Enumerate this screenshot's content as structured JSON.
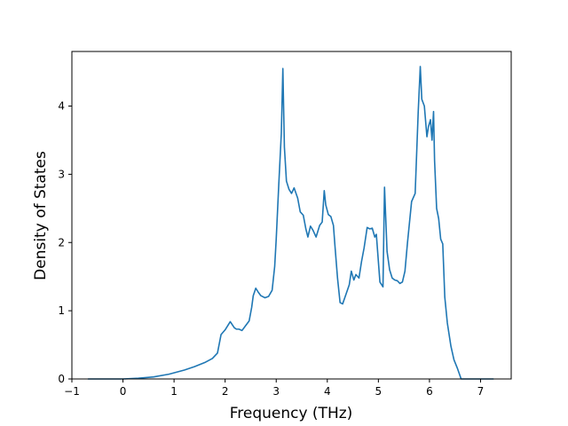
{
  "chart_data": {
    "type": "line",
    "title": "",
    "xlabel": "Frequency (THz)",
    "ylabel": "Density of States",
    "xlim": [
      -1.0,
      7.6
    ],
    "ylim": [
      0,
      4.8
    ],
    "xticks": [
      -1,
      0,
      1,
      2,
      3,
      4,
      5,
      6,
      7
    ],
    "yticks": [
      0,
      1,
      2,
      3,
      4
    ],
    "xtick_labels": [
      "−1",
      "0",
      "1",
      "2",
      "3",
      "4",
      "5",
      "6",
      "7"
    ],
    "ytick_labels": [
      "0",
      "1",
      "2",
      "3",
      "4"
    ],
    "grid": false,
    "legend": "none",
    "colors": {
      "line": "#1f77b4",
      "axes": "#000000",
      "background": "#ffffff"
    },
    "series": [
      {
        "x": [
          -0.68,
          -0.2,
          0.0,
          0.3,
          0.6,
          0.9,
          1.2,
          1.4,
          1.6,
          1.75,
          1.85,
          1.92,
          2.0,
          2.1,
          2.18,
          2.22,
          2.27,
          2.33,
          2.4,
          2.47,
          2.52,
          2.55,
          2.6,
          2.65,
          2.7,
          2.78,
          2.85,
          2.92,
          2.97,
          3.0,
          3.05,
          3.1,
          3.13,
          3.16,
          3.2,
          3.25,
          3.3,
          3.35,
          3.42,
          3.47,
          3.53,
          3.58,
          3.62,
          3.67,
          3.72,
          3.78,
          3.85,
          3.9,
          3.94,
          3.97,
          4.02,
          4.07,
          4.12,
          4.15,
          4.2,
          4.25,
          4.3,
          4.37,
          4.43,
          4.47,
          4.52,
          4.56,
          4.62,
          4.67,
          4.72,
          4.78,
          4.83,
          4.88,
          4.93,
          4.96,
          5.03,
          5.09,
          5.12,
          5.17,
          5.22,
          5.27,
          5.32,
          5.37,
          5.42,
          5.47,
          5.52,
          5.57,
          5.65,
          5.72,
          5.78,
          5.82,
          5.85,
          5.9,
          5.95,
          5.98,
          6.02,
          6.05,
          6.08,
          6.1,
          6.14,
          6.18,
          6.22,
          6.26,
          6.3,
          6.35,
          6.42,
          6.48,
          6.55,
          6.62,
          6.75,
          6.9,
          7.1,
          7.25
        ],
        "y": [
          0.0,
          0.0,
          0.0,
          0.01,
          0.03,
          0.07,
          0.13,
          0.18,
          0.24,
          0.3,
          0.38,
          0.65,
          0.72,
          0.84,
          0.75,
          0.73,
          0.73,
          0.71,
          0.78,
          0.85,
          1.05,
          1.22,
          1.33,
          1.27,
          1.22,
          1.19,
          1.21,
          1.3,
          1.65,
          2.05,
          2.85,
          3.6,
          4.55,
          3.4,
          2.9,
          2.78,
          2.72,
          2.8,
          2.65,
          2.45,
          2.4,
          2.2,
          2.08,
          2.24,
          2.18,
          2.08,
          2.25,
          2.3,
          2.76,
          2.55,
          2.41,
          2.38,
          2.25,
          1.95,
          1.48,
          1.12,
          1.1,
          1.25,
          1.38,
          1.58,
          1.45,
          1.53,
          1.48,
          1.72,
          1.92,
          2.22,
          2.2,
          2.21,
          2.08,
          2.12,
          1.42,
          1.35,
          2.81,
          1.87,
          1.6,
          1.48,
          1.45,
          1.44,
          1.4,
          1.42,
          1.58,
          2.0,
          2.6,
          2.72,
          3.92,
          4.58,
          4.1,
          4.0,
          3.55,
          3.7,
          3.8,
          3.5,
          3.92,
          3.2,
          2.5,
          2.35,
          2.05,
          1.98,
          1.2,
          0.82,
          0.48,
          0.28,
          0.15,
          0.0,
          0.0,
          0.0,
          0.0,
          0.0
        ]
      }
    ]
  }
}
